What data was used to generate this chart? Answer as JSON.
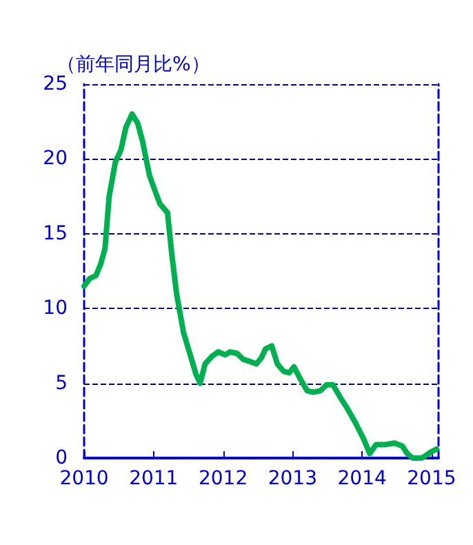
{
  "chart_data": {
    "type": "line",
    "ylabel": "（前年同月比%）",
    "x": [
      2010.0,
      2010.08,
      2010.17,
      2010.24,
      2010.3,
      2010.36,
      2010.45,
      2010.53,
      2010.6,
      2010.69,
      2010.77,
      2010.84,
      2010.94,
      2011.01,
      2011.09,
      2011.2,
      2011.26,
      2011.33,
      2011.43,
      2011.54,
      2011.61,
      2011.67,
      2011.74,
      2011.84,
      2011.93,
      2012.03,
      2012.1,
      2012.2,
      2012.29,
      2012.36,
      2012.48,
      2012.55,
      2012.61,
      2012.7,
      2012.78,
      2012.87,
      2012.95,
      2013.02,
      2013.11,
      2013.21,
      2013.3,
      2013.4,
      2013.49,
      2013.58,
      2013.68,
      2013.79,
      2013.9,
      2014.02,
      2014.11,
      2014.2,
      2014.33,
      2014.47,
      2014.58,
      2014.65,
      2014.73,
      2014.86,
      2014.99,
      2015.07
    ],
    "series": [
      {
        "color": "#00b050",
        "values": [
          11.5,
          12.0,
          12.2,
          13.0,
          14.0,
          17.5,
          19.8,
          20.6,
          22.1,
          23.0,
          22.4,
          21.2,
          18.9,
          18.0,
          17.0,
          16.4,
          13.7,
          11.0,
          8.4,
          6.7,
          5.6,
          5.0,
          6.3,
          6.8,
          7.1,
          6.9,
          7.1,
          7.0,
          6.6,
          6.5,
          6.3,
          6.7,
          7.3,
          7.5,
          6.3,
          5.8,
          5.7,
          6.1,
          5.3,
          4.5,
          4.4,
          4.5,
          4.9,
          4.9,
          4.1,
          3.3,
          2.4,
          1.3,
          0.3,
          0.9,
          0.9,
          1.0,
          0.8,
          0.3,
          0.0,
          0.0,
          0.4,
          0.6
        ]
      }
    ],
    "xlim": [
      2010,
      2015.1
    ],
    "xticks": [
      2010,
      2011,
      2012,
      2013,
      2014,
      2015
    ],
    "ylim": [
      0,
      25
    ],
    "yticks": [
      0,
      5,
      10,
      15,
      20,
      25
    ],
    "grid": "y",
    "marker": "none",
    "line_style": "solid"
  }
}
